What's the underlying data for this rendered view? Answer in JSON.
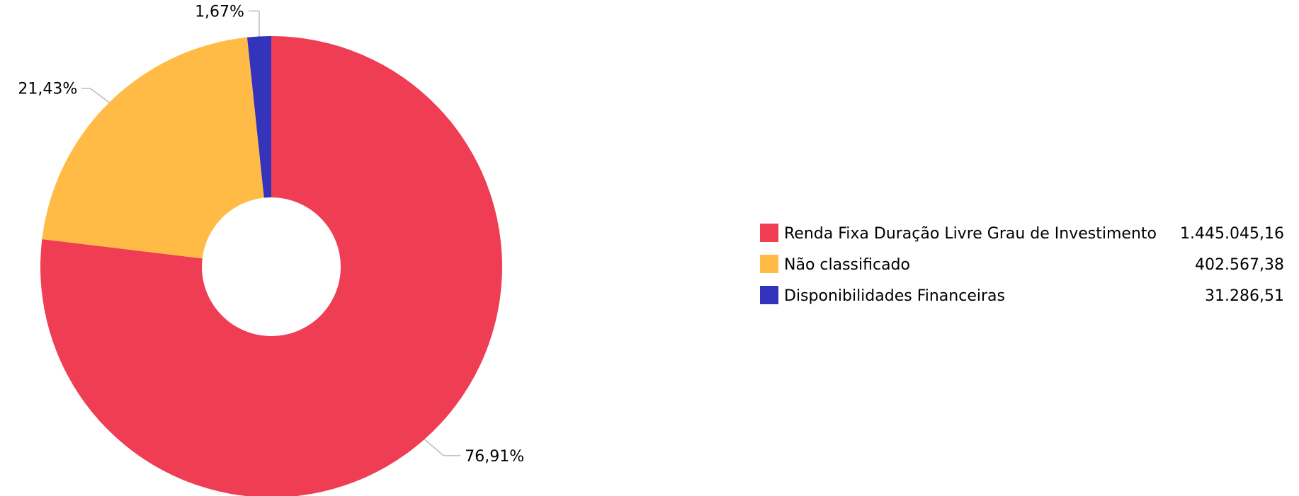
{
  "chart_data": {
    "type": "pie",
    "donut": true,
    "legend_position": "right",
    "slices": [
      {
        "label": "Renda Fixa Duração Livre Grau de Investimento",
        "value": 1445045.16,
        "value_text": "1.445.045,16",
        "percent_text": "76,91%",
        "color": "#ef3e53"
      },
      {
        "label": "Não classificado",
        "value": 402567.38,
        "value_text": "402.567,38",
        "percent_text": "21,43%",
        "color": "#ffbb46"
      },
      {
        "label": "Disponibilidades Financeiras",
        "value": 31286.51,
        "value_text": "31.286,51",
        "percent_text": "1,67%",
        "color": "#3333bb"
      }
    ]
  }
}
